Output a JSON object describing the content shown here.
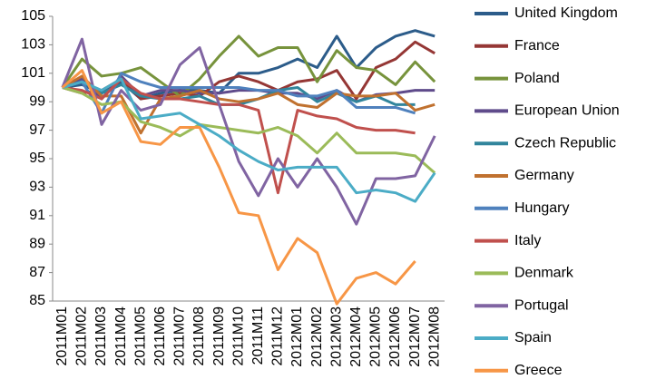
{
  "chart_data": {
    "type": "line",
    "categories": [
      "2011M01",
      "2011M02",
      "2011M03",
      "2011M04",
      "2011M05",
      "2011M06",
      "2011M07",
      "2011M08",
      "2011M09",
      "2011M10",
      "2011M11",
      "2011M12",
      "2012M01",
      "2012M02",
      "2012M03",
      "2012M04",
      "2012M05",
      "2012M06",
      "2012M07",
      "2012M08"
    ],
    "ylim": [
      85,
      105
    ],
    "yticks": [
      85,
      87,
      89,
      91,
      93,
      95,
      97,
      99,
      101,
      103,
      105
    ],
    "grid": false,
    "legend": "right",
    "series": [
      {
        "name": "United Kingdom",
        "color": "#2c5c8a",
        "values": [
          100,
          100.2,
          99.6,
          100.4,
          99.2,
          99.6,
          99.8,
          99.8,
          99.6,
          101,
          101,
          101.4,
          102,
          101.4,
          103.6,
          101.4,
          102.8,
          103.6,
          104,
          103.6
        ]
      },
      {
        "name": "France",
        "color": "#953735",
        "values": [
          100,
          99.6,
          99.8,
          100.6,
          99.2,
          99.4,
          99.6,
          99.4,
          100.4,
          100.8,
          100.4,
          99.8,
          100.4,
          100.6,
          101.2,
          99.2,
          101.4,
          102,
          103.2,
          102.4
        ]
      },
      {
        "name": "Poland",
        "color": "#77933c",
        "values": [
          100,
          102,
          100.8,
          101,
          101.4,
          100.4,
          99.4,
          100.6,
          102.2,
          103.6,
          102.2,
          102.8,
          102.8,
          100.4,
          102.6,
          101.4,
          101.2,
          100.2,
          101.8,
          100.4
        ]
      },
      {
        "name": "European Union",
        "color": "#5f4b8b",
        "values": [
          100,
          100.6,
          99.2,
          100.8,
          99.4,
          99.8,
          99.8,
          99.6,
          99.6,
          99.8,
          99.8,
          99.6,
          99.6,
          99.2,
          99.8,
          99,
          99.5,
          99.6,
          99.8,
          99.8
        ]
      },
      {
        "name": "Czech Republic",
        "color": "#31859c",
        "values": [
          100,
          100.4,
          99.6,
          100.2,
          99.4,
          99.2,
          99.2,
          99.4,
          98.8,
          98.8,
          99.2,
          99.8,
          100,
          99,
          99.6,
          99,
          99.4,
          98.8,
          98.8,
          null
        ]
      },
      {
        "name": "Germany",
        "color": "#c0712f",
        "values": [
          100,
          100.8,
          99.4,
          99.4,
          96.8,
          99.2,
          99.4,
          99.8,
          99.2,
          99,
          99.2,
          99.6,
          98.8,
          98.6,
          99.6,
          99.4,
          99.4,
          99.6,
          98.4,
          98.8
        ]
      },
      {
        "name": "Hungary",
        "color": "#4f81bd",
        "values": [
          100,
          100.4,
          98.2,
          101,
          100.4,
          100,
          100,
          100,
          100,
          100,
          99.8,
          99.8,
          99.4,
          99.4,
          99.8,
          98.6,
          98.6,
          98.6,
          98.2,
          null
        ]
      },
      {
        "name": "Italy",
        "color": "#c0504d",
        "values": [
          100,
          99.8,
          99.2,
          100.6,
          99.6,
          99.2,
          99.2,
          99,
          98.8,
          98.8,
          98.4,
          92.6,
          98.4,
          98,
          97.8,
          97.2,
          97,
          97,
          96.8,
          null
        ]
      },
      {
        "name": "Denmark",
        "color": "#9bbb59",
        "values": [
          100,
          99.6,
          98.8,
          99,
          97.6,
          97.2,
          96.6,
          97.4,
          97.2,
          97,
          96.8,
          97.2,
          96.6,
          95.4,
          96.8,
          95.4,
          95.4,
          95.4,
          95.2,
          94
        ]
      },
      {
        "name": "Portugal",
        "color": "#8064a2",
        "values": [
          100,
          103.4,
          97.4,
          99.8,
          98.4,
          98.8,
          101.6,
          102.8,
          98.8,
          94.8,
          92.4,
          95,
          93,
          95,
          93,
          90.4,
          93.6,
          93.6,
          93.8,
          96.6
        ]
      },
      {
        "name": "Spain",
        "color": "#4bacc6",
        "values": [
          100,
          100.4,
          99.8,
          100.6,
          97.8,
          98,
          98.2,
          97.4,
          96.6,
          95.6,
          94.8,
          94.2,
          94.4,
          94.4,
          94.4,
          92.6,
          92.8,
          92.6,
          92,
          94
        ]
      },
      {
        "name": "Greece",
        "color": "#f79646",
        "values": [
          100,
          101.2,
          98.2,
          99,
          96.2,
          96,
          97.2,
          97.2,
          94.4,
          91.2,
          91,
          87.2,
          89.4,
          88.4,
          84.8,
          86.6,
          87,
          86.2,
          87.8,
          null
        ]
      }
    ]
  }
}
